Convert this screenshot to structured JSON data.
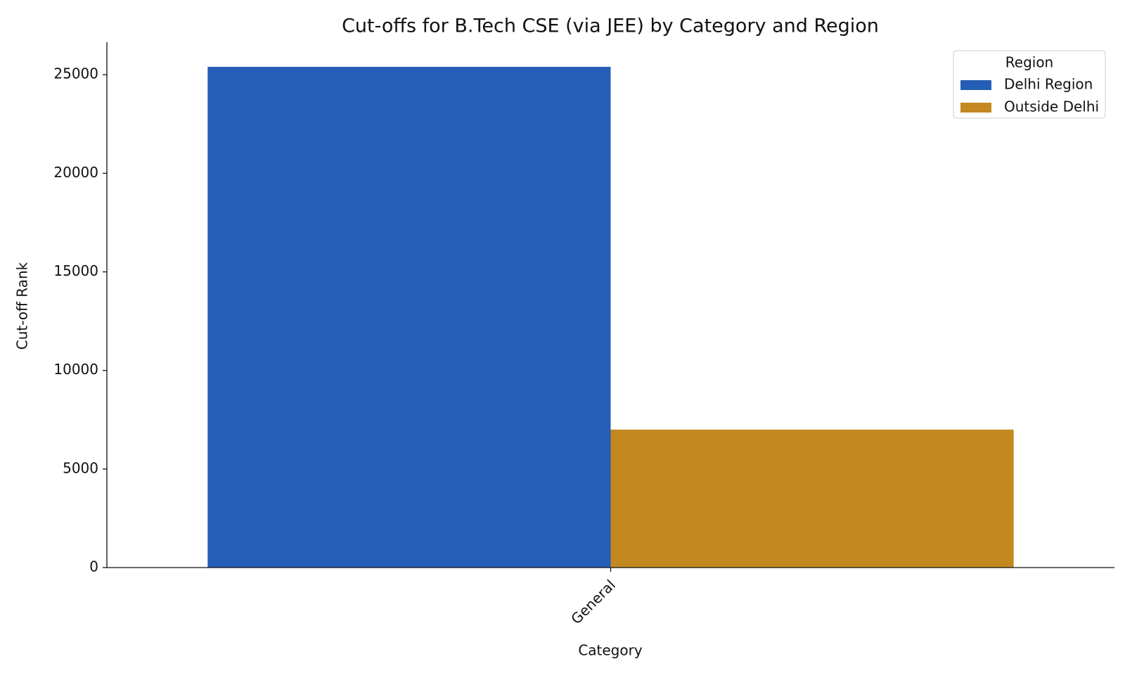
{
  "chart_data": {
    "type": "bar",
    "title": "Cut-offs for B.Tech CSE (via JEE) by Category and Region",
    "x_label": "Category",
    "y_label": "Cut-off Rank",
    "categories": [
      "General"
    ],
    "series": [
      {
        "name": "Delhi Region",
        "color": "#245eb6",
        "values": [
          25400
        ]
      },
      {
        "name": "Outside Delhi",
        "color": "#c38820",
        "values": [
          7000
        ]
      }
    ],
    "ylim": [
      0,
      26650
    ],
    "yticks": [
      0,
      5000,
      10000,
      15000,
      20000,
      25000
    ],
    "legend_title": "Region",
    "legend_position": "upper right",
    "grid": false
  }
}
